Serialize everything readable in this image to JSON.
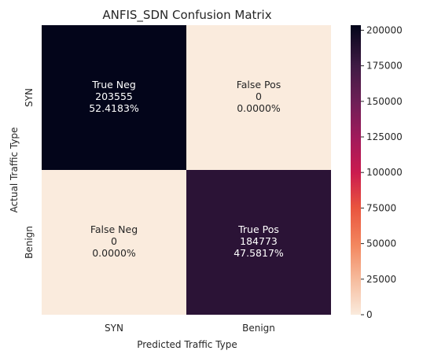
{
  "chart_data": {
    "type": "heatmap",
    "title": "ANFIS_SDN Confusion Matrix",
    "xlabel": "Predicted Traffic Type",
    "ylabel": "Actual Traffic Type",
    "x_categories": [
      "SYN",
      "Benign"
    ],
    "y_categories": [
      "SYN",
      "Benign"
    ],
    "values": [
      [
        203555,
        0
      ],
      [
        0,
        184773
      ]
    ],
    "cell_labels": [
      [
        {
          "name": "True Neg",
          "count": "203555",
          "percent": "52.4183%"
        },
        {
          "name": "False Pos",
          "count": "0",
          "percent": "0.0000%"
        }
      ],
      [
        {
          "name": "False Neg",
          "count": "0",
          "percent": "0.0000%"
        },
        {
          "name": "True Pos",
          "count": "184773",
          "percent": "47.5817%"
        }
      ]
    ],
    "colorbar": {
      "min": 0,
      "max": 203555,
      "ticks": [
        0,
        25000,
        50000,
        75000,
        100000,
        125000,
        150000,
        175000,
        200000
      ],
      "colormap": "rocket_r",
      "color_low": "#faebdd",
      "color_high": "#03051a"
    },
    "legend_position": "right",
    "grid": false
  }
}
